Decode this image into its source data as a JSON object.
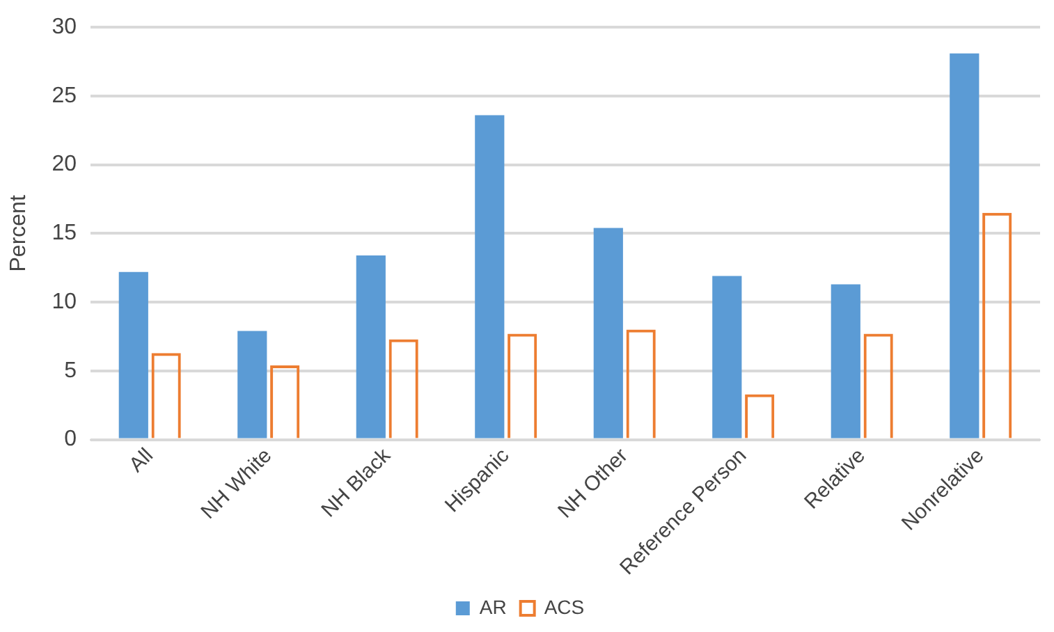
{
  "chart_data": {
    "type": "bar",
    "ylabel": "Percent",
    "categories": [
      "All",
      "NH White",
      "NH Black",
      "Hispanic",
      "NH Other",
      "Reference Person",
      "Relative",
      "Nonrelative"
    ],
    "series": [
      {
        "name": "AR",
        "color": "#5b9bd5",
        "values": [
          12.2,
          7.9,
          13.4,
          23.6,
          15.4,
          11.9,
          11.3,
          28.1
        ]
      },
      {
        "name": "ACS",
        "color": "#ed7d31",
        "values": [
          6.3,
          5.4,
          7.3,
          7.7,
          8.0,
          3.3,
          7.7,
          16.5
        ]
      }
    ],
    "ylim": [
      0,
      30
    ],
    "yticks": [
      0,
      5,
      10,
      15,
      20,
      25,
      30
    ],
    "grid": "y",
    "legend": "bottom"
  }
}
